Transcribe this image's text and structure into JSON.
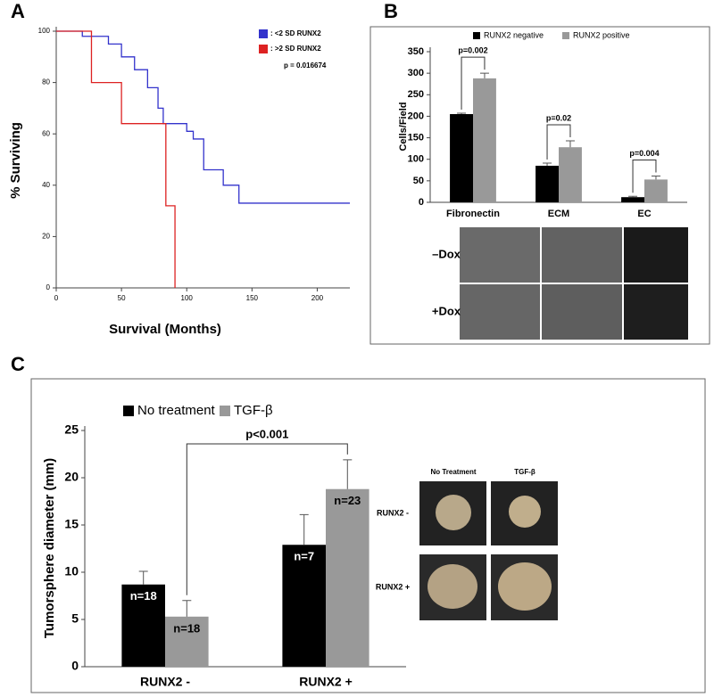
{
  "chart_data": [
    {
      "type": "line",
      "panel": "A",
      "x_label": "Survival (Months)",
      "y_label": "% Surviving",
      "annotation": "p = 0.016674",
      "xlim": [
        0,
        225
      ],
      "xticks": [
        0,
        50,
        100,
        150,
        200
      ],
      "ylim": [
        0,
        100
      ],
      "yticks": [
        0,
        20,
        40,
        60,
        80,
        100
      ],
      "series": [
        {
          "name": ": <2 SD RUNX2",
          "color": "#3333cc",
          "x": [
            0,
            20,
            20,
            40,
            40,
            50,
            50,
            60,
            60,
            70,
            70,
            78,
            78,
            82,
            82,
            100,
            100,
            105,
            105,
            113,
            113,
            128,
            128,
            140,
            140,
            225
          ],
          "values": [
            100,
            100,
            98,
            98,
            95,
            95,
            90,
            90,
            85,
            85,
            78,
            78,
            70,
            70,
            64,
            64,
            61,
            61,
            58,
            58,
            46,
            46,
            40,
            40,
            33,
            33
          ]
        },
        {
          "name": ": >2 SD RUNX2",
          "color": "#dd2222",
          "x": [
            0,
            27,
            27,
            50,
            50,
            84,
            84,
            91,
            91
          ],
          "values": [
            100,
            100,
            80,
            80,
            64,
            64,
            32,
            32,
            0
          ]
        }
      ]
    },
    {
      "type": "bar",
      "panel": "B",
      "y_label": "Cells/Field",
      "categories": [
        "Fibronectin",
        "ECM",
        "EC"
      ],
      "annotations": [
        "p=0.002",
        "p=0.02",
        "p=0.004"
      ],
      "ylim": [
        0,
        350
      ],
      "yticks": [
        0,
        50,
        100,
        150,
        200,
        250,
        300,
        350
      ],
      "series": [
        {
          "name": "RUNX2 negative",
          "color": "#000000",
          "values": [
            205,
            85,
            12
          ],
          "errors": [
            2,
            6,
            2
          ]
        },
        {
          "name": "RUNX2 positive",
          "color": "#999999",
          "values": [
            288,
            128,
            53
          ],
          "errors": [
            12,
            15,
            8
          ]
        }
      ],
      "image_rows": [
        "–Dox",
        "+Dox"
      ]
    },
    {
      "type": "bar",
      "panel": "C",
      "y_label": "Tumorsphere diameter (mm)",
      "categories": [
        "RUNX2 -",
        "RUNX2 +"
      ],
      "annotation": "p<0.001",
      "ylim": [
        0,
        25
      ],
      "yticks": [
        0,
        5,
        10,
        15,
        20,
        25
      ],
      "series": [
        {
          "name": "No treatment",
          "color": "#000000",
          "values": [
            8.7,
            12.9
          ],
          "errors": [
            1.4,
            3.2
          ],
          "labels": [
            "n=18",
            "n=7"
          ]
        },
        {
          "name": "TGF-β",
          "color": "#999999",
          "values": [
            5.3,
            18.8
          ],
          "errors": [
            1.7,
            3.1
          ],
          "labels": [
            "n=18",
            "n=23"
          ]
        }
      ],
      "image_columns": [
        "No Treatment",
        "TGF-β"
      ],
      "image_rows": [
        "RUNX2 -",
        "RUNX2 +"
      ]
    }
  ]
}
